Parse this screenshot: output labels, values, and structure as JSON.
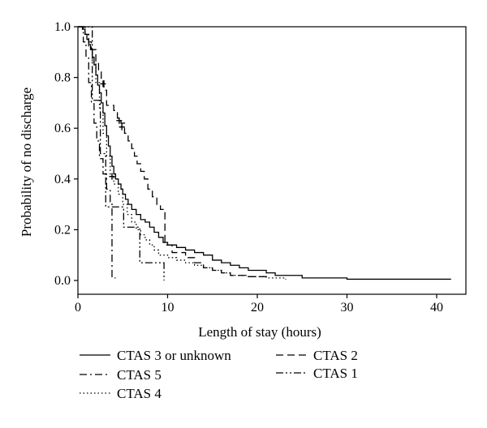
{
  "chart_data": {
    "type": "line",
    "subtype": "kaplan-meier-step",
    "title": "",
    "xlabel": "Length of stay (hours)",
    "ylabel": "Probability of no discharge",
    "xlim": [
      0,
      42
    ],
    "ylim": [
      0,
      1
    ],
    "x_ticks": [
      0,
      10,
      20,
      30,
      40
    ],
    "y_ticks": [
      0.0,
      0.2,
      0.4,
      0.6,
      0.8,
      1.0
    ],
    "y_tick_labels": [
      "0.0",
      "0.2",
      "0.4",
      "0.6",
      "0.8",
      "1.0"
    ],
    "grid": false,
    "legend_position": "below-plot",
    "series": [
      {
        "name": "CTAS 3 or unknown",
        "linestyle": "solid",
        "color": "#000000",
        "points": [
          [
            0,
            1.0
          ],
          [
            0.5,
            0.99
          ],
          [
            0.8,
            0.97
          ],
          [
            1.0,
            0.95
          ],
          [
            1.2,
            0.93
          ],
          [
            1.4,
            0.91
          ],
          [
            1.6,
            0.88
          ],
          [
            1.8,
            0.85
          ],
          [
            2.0,
            0.81
          ],
          [
            2.2,
            0.77
          ],
          [
            2.4,
            0.74
          ],
          [
            2.6,
            0.7
          ],
          [
            2.8,
            0.66
          ],
          [
            3.0,
            0.61
          ],
          [
            3.2,
            0.57
          ],
          [
            3.4,
            0.53
          ],
          [
            3.6,
            0.49
          ],
          [
            3.8,
            0.45
          ],
          [
            4.0,
            0.42
          ],
          [
            4.2,
            0.4
          ],
          [
            4.5,
            0.38
          ],
          [
            4.8,
            0.36
          ],
          [
            5.0,
            0.34
          ],
          [
            5.3,
            0.32
          ],
          [
            5.6,
            0.3
          ],
          [
            6.0,
            0.28
          ],
          [
            6.5,
            0.26
          ],
          [
            7.0,
            0.24
          ],
          [
            7.5,
            0.23
          ],
          [
            8.0,
            0.21
          ],
          [
            8.5,
            0.19
          ],
          [
            9.0,
            0.17
          ],
          [
            9.5,
            0.15
          ],
          [
            10.0,
            0.14
          ],
          [
            11,
            0.13
          ],
          [
            12,
            0.12
          ],
          [
            13,
            0.11
          ],
          [
            14,
            0.1
          ],
          [
            15,
            0.08
          ],
          [
            16,
            0.07
          ],
          [
            17,
            0.06
          ],
          [
            18,
            0.05
          ],
          [
            19,
            0.04
          ],
          [
            20,
            0.04
          ],
          [
            21,
            0.03
          ],
          [
            22,
            0.02
          ],
          [
            24,
            0.02
          ],
          [
            25,
            0.01
          ],
          [
            29,
            0.01
          ],
          [
            30,
            0.005
          ],
          [
            41.6,
            0.005
          ]
        ],
        "end_x": 41.6
      },
      {
        "name": "CTAS 2",
        "linestyle": "dashed",
        "color": "#000000",
        "points": [
          [
            0,
            1.0
          ],
          [
            0.8,
            0.97
          ],
          [
            1.2,
            0.94
          ],
          [
            1.5,
            0.91
          ],
          [
            2.0,
            0.86
          ],
          [
            2.3,
            0.83
          ],
          [
            2.6,
            0.79
          ],
          [
            2.9,
            0.75
          ],
          [
            3.2,
            0.69
          ],
          [
            4.0,
            0.67
          ],
          [
            4.4,
            0.64
          ],
          [
            4.8,
            0.62
          ],
          [
            5.2,
            0.58
          ],
          [
            5.6,
            0.55
          ],
          [
            6.0,
            0.52
          ],
          [
            6.3,
            0.49
          ],
          [
            6.6,
            0.46
          ],
          [
            7.0,
            0.43
          ],
          [
            7.4,
            0.4
          ],
          [
            7.8,
            0.36
          ],
          [
            8.3,
            0.33
          ],
          [
            8.8,
            0.3
          ],
          [
            9.2,
            0.28
          ],
          [
            9.7,
            0.14
          ],
          [
            10.5,
            0.11
          ],
          [
            12,
            0.09
          ],
          [
            13,
            0.07
          ],
          [
            14,
            0.05
          ],
          [
            15,
            0.04
          ],
          [
            16,
            0.03
          ],
          [
            17,
            0.02
          ],
          [
            19,
            0.015
          ],
          [
            21,
            0.01
          ]
        ],
        "end_x": 21,
        "censor_marks": [
          [
            2.8,
            0.775
          ],
          [
            4.6,
            0.63
          ],
          [
            4.9,
            0.605
          ]
        ]
      },
      {
        "name": "CTAS 5",
        "linestyle": "dashdot",
        "color": "#000000",
        "points": [
          [
            0,
            1.0
          ],
          [
            0.6,
            0.94
          ],
          [
            0.9,
            0.88
          ],
          [
            1.2,
            0.78
          ],
          [
            1.5,
            0.7
          ],
          [
            1.8,
            0.62
          ],
          [
            2.1,
            0.55
          ],
          [
            2.4,
            0.48
          ],
          [
            2.8,
            0.42
          ],
          [
            3.2,
            0.36
          ],
          [
            3.6,
            0.31
          ],
          [
            3.8,
            0.01
          ]
        ],
        "end_x": 4.2,
        "censor_marks": [
          [
            3.8,
            0.41
          ]
        ]
      },
      {
        "name": "CTAS 1",
        "linestyle": "dashdotdot",
        "color": "#000000",
        "points": [
          [
            0,
            1.0
          ],
          [
            1.5,
            1.0
          ],
          [
            1.6,
            0.71
          ],
          [
            2.4,
            0.71
          ],
          [
            2.5,
            0.5
          ],
          [
            3.0,
            0.5
          ],
          [
            3.1,
            0.29
          ],
          [
            5.0,
            0.29
          ],
          [
            5.1,
            0.21
          ],
          [
            6.8,
            0.21
          ],
          [
            6.9,
            0.07
          ],
          [
            9.5,
            0.07
          ],
          [
            9.6,
            0.0
          ]
        ],
        "end_x": 9.6
      },
      {
        "name": "CTAS 4",
        "linestyle": "dotted",
        "color": "#000000",
        "points": [
          [
            0,
            1.0
          ],
          [
            0.8,
            0.97
          ],
          [
            1.2,
            0.92
          ],
          [
            1.6,
            0.86
          ],
          [
            2.0,
            0.78
          ],
          [
            2.4,
            0.68
          ],
          [
            2.8,
            0.58
          ],
          [
            3.2,
            0.49
          ],
          [
            3.6,
            0.42
          ],
          [
            4.0,
            0.38
          ],
          [
            4.5,
            0.34
          ],
          [
            5.0,
            0.3
          ],
          [
            5.5,
            0.26
          ],
          [
            6.0,
            0.23
          ],
          [
            6.5,
            0.2
          ],
          [
            7.0,
            0.18
          ],
          [
            7.5,
            0.16
          ],
          [
            8.0,
            0.14
          ],
          [
            8.5,
            0.12
          ],
          [
            9.0,
            0.1
          ],
          [
            10.0,
            0.09
          ],
          [
            11,
            0.08
          ],
          [
            12,
            0.07
          ],
          [
            13,
            0.06
          ],
          [
            14,
            0.05
          ],
          [
            15,
            0.04
          ],
          [
            16,
            0.03
          ],
          [
            17,
            0.02
          ],
          [
            19,
            0.015
          ],
          [
            21,
            0.01
          ],
          [
            23,
            0.005
          ]
        ],
        "end_x": 23.2
      }
    ]
  },
  "legend": {
    "items": [
      {
        "label": "CTAS 3 or unknown",
        "style": "solid"
      },
      {
        "label": "CTAS 2",
        "style": "dashed"
      },
      {
        "label": "CTAS 5",
        "style": "dashdot"
      },
      {
        "label": "CTAS 1",
        "style": "dashdotdot"
      },
      {
        "label": "CTAS 4",
        "style": "dotted"
      }
    ]
  }
}
